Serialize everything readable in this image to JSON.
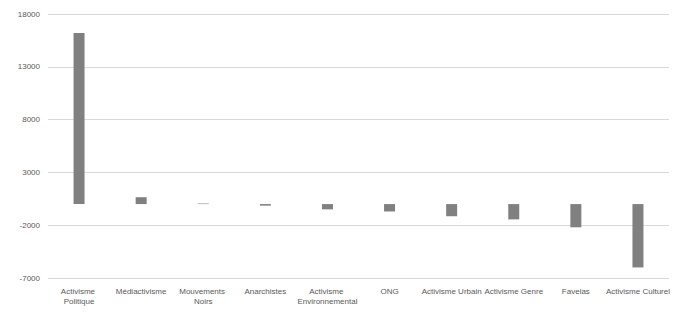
{
  "chart_data": {
    "type": "bar",
    "categories": [
      "Activisme Politique",
      "Médiactivisme",
      "Mouvements Noirs",
      "Anarchistes",
      "Activisme Environnemental",
      "ONG",
      "Activisme Urbain",
      "Activisme Genre",
      "Favelas",
      "Activisme Culturel"
    ],
    "values": [
      16200,
      650,
      50,
      -150,
      -500,
      -700,
      -1150,
      -1450,
      -2200,
      -6000
    ],
    "color": "#808080",
    "ylim": [
      -7000,
      18000
    ],
    "yticks": [
      -7000,
      -2000,
      3000,
      8000,
      13000,
      18000
    ],
    "grid": true
  }
}
